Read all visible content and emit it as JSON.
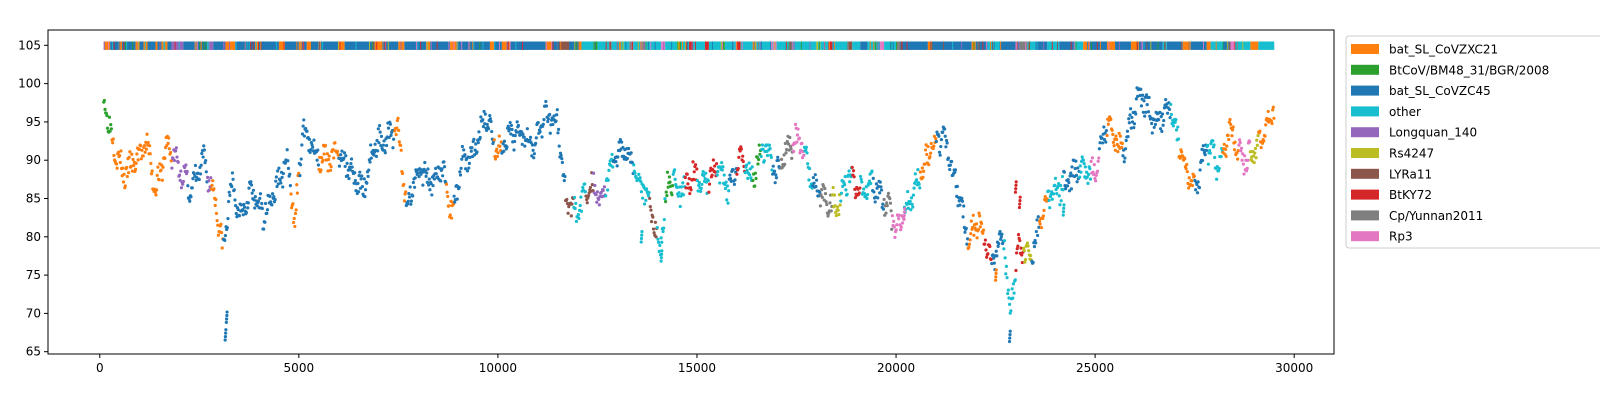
{
  "chart_data": {
    "type": "scatter",
    "title": "",
    "xlabel": "",
    "ylabel": "",
    "xlim": [
      -1300,
      31000
    ],
    "ylim": [
      64.7,
      107
    ],
    "x_ticks": [
      0,
      5000,
      10000,
      15000,
      20000,
      25000,
      30000
    ],
    "x_tick_labels": [
      "0",
      "5000",
      "10000",
      "15000",
      "20000",
      "25000",
      "30000"
    ],
    "y_ticks": [
      65,
      70,
      75,
      80,
      85,
      90,
      95,
      100,
      105
    ],
    "y_tick_labels": [
      "65",
      "70",
      "75",
      "80",
      "85",
      "90",
      "95",
      "100",
      "105"
    ],
    "grid": false,
    "legend_position": "outside-right-top",
    "series": [
      {
        "name": "bat_SL_CoVZXC21",
        "color": "#ff7f0e"
      },
      {
        "name": "BtCoV/BM48_31/BGR/2008",
        "color": "#2ca02c"
      },
      {
        "name": "bat_SL_CoVZC45",
        "color": "#1f77b4"
      },
      {
        "name": "other",
        "color": "#17becf"
      },
      {
        "name": "Longquan_140",
        "color": "#9467bd"
      },
      {
        "name": "Rs4247",
        "color": "#bcbd22"
      },
      {
        "name": "LYRa11",
        "color": "#8c564b"
      },
      {
        "name": "BtKY72",
        "color": "#d62728"
      },
      {
        "name": "Cp/Yunnan2011",
        "color": "#7f7f7f"
      },
      {
        "name": "Rp3",
        "color": "#e377c2"
      }
    ],
    "anchors": [
      [
        100,
        98.5
      ],
      [
        300,
        93
      ],
      [
        600,
        88
      ],
      [
        900,
        90
      ],
      [
        1200,
        92
      ],
      [
        1400,
        86
      ],
      [
        1700,
        92
      ],
      [
        2000,
        89
      ],
      [
        2300,
        86
      ],
      [
        2600,
        90
      ],
      [
        2900,
        85
      ],
      [
        3100,
        78
      ],
      [
        3300,
        87
      ],
      [
        3500,
        83
      ],
      [
        3800,
        86
      ],
      [
        4100,
        83
      ],
      [
        4400,
        86
      ],
      [
        4700,
        90
      ],
      [
        4900,
        82
      ],
      [
        5100,
        94
      ],
      [
        5400,
        91
      ],
      [
        5700,
        90
      ],
      [
        6000,
        91
      ],
      [
        6300,
        89
      ],
      [
        6600,
        86
      ],
      [
        6900,
        92
      ],
      [
        7200,
        93
      ],
      [
        7500,
        94
      ],
      [
        7700,
        84
      ],
      [
        8000,
        89
      ],
      [
        8300,
        87
      ],
      [
        8600,
        89
      ],
      [
        8850,
        83
      ],
      [
        9100,
        90
      ],
      [
        9400,
        91
      ],
      [
        9700,
        96
      ],
      [
        10000,
        91
      ],
      [
        10300,
        93
      ],
      [
        10600,
        94
      ],
      [
        10900,
        92
      ],
      [
        11200,
        96
      ],
      [
        11500,
        95
      ],
      [
        11700,
        85
      ],
      [
        12000,
        83
      ],
      [
        12300,
        87
      ],
      [
        12600,
        85
      ],
      [
        12900,
        90
      ],
      [
        13200,
        92
      ],
      [
        13500,
        88
      ],
      [
        13800,
        85
      ],
      [
        14050,
        78
      ],
      [
        14300,
        88
      ],
      [
        14600,
        86
      ],
      [
        14900,
        88
      ],
      [
        15200,
        87
      ],
      [
        15500,
        89
      ],
      [
        15800,
        86
      ],
      [
        16100,
        90
      ],
      [
        16400,
        88
      ],
      [
        16700,
        92
      ],
      [
        17000,
        88
      ],
      [
        17300,
        92
      ],
      [
        17600,
        93
      ],
      [
        17900,
        87
      ],
      [
        18200,
        85
      ],
      [
        18500,
        84
      ],
      [
        18800,
        88
      ],
      [
        19100,
        86
      ],
      [
        19400,
        87
      ],
      [
        19700,
        85
      ],
      [
        20000,
        81
      ],
      [
        20300,
        84
      ],
      [
        20600,
        88
      ],
      [
        20900,
        92
      ],
      [
        21200,
        93
      ],
      [
        21500,
        87
      ],
      [
        21800,
        80
      ],
      [
        22100,
        82
      ],
      [
        22400,
        76
      ],
      [
        22700,
        81
      ],
      [
        22850,
        70
      ],
      [
        23100,
        79
      ],
      [
        23400,
        77
      ],
      [
        23700,
        84
      ],
      [
        24000,
        86
      ],
      [
        24300,
        87
      ],
      [
        24600,
        89
      ],
      [
        25000,
        88
      ],
      [
        25300,
        95
      ],
      [
        25700,
        91
      ],
      [
        26100,
        99
      ],
      [
        26500,
        95
      ],
      [
        26900,
        97
      ],
      [
        27200,
        90
      ],
      [
        27500,
        86
      ],
      [
        27800,
        92
      ],
      [
        28100,
        89
      ],
      [
        28400,
        94
      ],
      [
        28700,
        90
      ],
      [
        29000,
        91
      ],
      [
        29300,
        94
      ],
      [
        29500,
        97
      ]
    ],
    "segments": [
      [
        0,
        300,
        1
      ],
      [
        300,
        1500,
        0
      ],
      [
        1500,
        1800,
        0
      ],
      [
        1800,
        2200,
        4
      ],
      [
        2200,
        2700,
        2
      ],
      [
        2700,
        2800,
        4
      ],
      [
        2800,
        3100,
        0
      ],
      [
        3100,
        4800,
        2
      ],
      [
        4800,
        5000,
        0
      ],
      [
        5000,
        5500,
        2
      ],
      [
        5500,
        6000,
        0
      ],
      [
        6000,
        7400,
        2
      ],
      [
        7400,
        7700,
        0
      ],
      [
        7700,
        8700,
        2
      ],
      [
        8700,
        8900,
        0
      ],
      [
        8900,
        9900,
        2
      ],
      [
        9900,
        10100,
        0
      ],
      [
        10100,
        11700,
        2
      ],
      [
        11700,
        11900,
        6
      ],
      [
        11900,
        12200,
        3
      ],
      [
        12200,
        12400,
        6
      ],
      [
        12400,
        12700,
        4
      ],
      [
        12700,
        12900,
        3
      ],
      [
        12900,
        13400,
        2
      ],
      [
        13400,
        13800,
        3
      ],
      [
        13800,
        14000,
        6
      ],
      [
        14000,
        14200,
        3
      ],
      [
        14200,
        14400,
        1
      ],
      [
        14400,
        14700,
        3
      ],
      [
        14700,
        15000,
        7
      ],
      [
        15000,
        15300,
        3
      ],
      [
        15300,
        15500,
        7
      ],
      [
        15500,
        15800,
        3
      ],
      [
        15800,
        16000,
        2
      ],
      [
        16000,
        16200,
        7
      ],
      [
        16200,
        16400,
        3
      ],
      [
        16400,
        16600,
        1
      ],
      [
        16600,
        16900,
        3
      ],
      [
        16900,
        17100,
        2
      ],
      [
        17100,
        17400,
        8
      ],
      [
        17400,
        17700,
        9
      ],
      [
        17700,
        17900,
        3
      ],
      [
        17900,
        18100,
        2
      ],
      [
        18100,
        18400,
        8
      ],
      [
        18400,
        18600,
        5
      ],
      [
        18600,
        18900,
        3
      ],
      [
        18900,
        19100,
        7
      ],
      [
        19100,
        19400,
        3
      ],
      [
        19400,
        19700,
        2
      ],
      [
        19700,
        19900,
        8
      ],
      [
        19900,
        20200,
        9
      ],
      [
        20200,
        20600,
        3
      ],
      [
        20600,
        21000,
        0
      ],
      [
        21000,
        21800,
        2
      ],
      [
        21800,
        22200,
        0
      ],
      [
        22200,
        22400,
        7
      ],
      [
        22400,
        22700,
        2
      ],
      [
        22700,
        23000,
        3
      ],
      [
        23000,
        23200,
        7
      ],
      [
        23200,
        23400,
        5
      ],
      [
        23400,
        23600,
        2
      ],
      [
        23600,
        23800,
        0
      ],
      [
        23800,
        24200,
        3
      ],
      [
        24200,
        24600,
        2
      ],
      [
        24600,
        24900,
        3
      ],
      [
        24900,
        25100,
        9
      ],
      [
        25100,
        25300,
        2
      ],
      [
        25300,
        25700,
        0
      ],
      [
        25700,
        26900,
        2
      ],
      [
        26900,
        27100,
        3
      ],
      [
        27100,
        27500,
        0
      ],
      [
        27500,
        27800,
        2
      ],
      [
        27800,
        28200,
        3
      ],
      [
        28200,
        28600,
        0
      ],
      [
        28600,
        28900,
        9
      ],
      [
        28900,
        29100,
        5
      ],
      [
        29100,
        29500,
        0
      ]
    ],
    "outliers": [
      [
        3150,
        67.2,
        2
      ],
      [
        3180,
        69.5,
        2
      ],
      [
        22850,
        67.0,
        2
      ],
      [
        23000,
        86.5,
        7
      ],
      [
        23100,
        84.5,
        7
      ],
      [
        24200,
        83.5,
        3
      ],
      [
        13600,
        80.0,
        3
      ],
      [
        14100,
        77.5,
        3
      ],
      [
        20200,
        83.0,
        9
      ],
      [
        22500,
        75.0,
        0
      ]
    ],
    "band": {
      "y_low": 104.4,
      "y_high": 105.5,
      "pattern": [
        [
          100,
          0
        ],
        [
          260,
          2
        ],
        [
          480,
          0
        ],
        [
          560,
          2
        ],
        [
          900,
          0
        ],
        [
          1000,
          2
        ],
        [
          1100,
          0
        ],
        [
          1200,
          2
        ],
        [
          1400,
          0
        ],
        [
          1450,
          2
        ],
        [
          1550,
          0
        ],
        [
          1700,
          2
        ],
        [
          1800,
          4
        ],
        [
          2100,
          2
        ],
        [
          2400,
          0
        ],
        [
          2450,
          2
        ],
        [
          2700,
          4
        ],
        [
          2850,
          2
        ],
        [
          3150,
          0
        ],
        [
          3400,
          2
        ],
        [
          3900,
          0
        ],
        [
          4000,
          2
        ],
        [
          4500,
          0
        ],
        [
          4650,
          2
        ],
        [
          5000,
          0
        ],
        [
          5050,
          2
        ],
        [
          5200,
          0
        ],
        [
          5300,
          2
        ],
        [
          5500,
          0
        ],
        [
          5550,
          2
        ],
        [
          6000,
          0
        ],
        [
          6150,
          2
        ],
        [
          6900,
          0
        ],
        [
          7100,
          2
        ],
        [
          7500,
          0
        ],
        [
          7650,
          2
        ],
        [
          8200,
          0
        ],
        [
          8300,
          2
        ],
        [
          8800,
          0
        ],
        [
          9000,
          2
        ],
        [
          9800,
          0
        ],
        [
          9900,
          2
        ],
        [
          10100,
          0
        ],
        [
          10300,
          2
        ],
        [
          11200,
          0
        ],
        [
          11350,
          2
        ],
        [
          11500,
          6
        ],
        [
          11800,
          2
        ],
        [
          12000,
          0
        ],
        [
          12100,
          3
        ],
        [
          12400,
          1
        ],
        [
          12500,
          3
        ],
        [
          12800,
          7
        ],
        [
          12850,
          3
        ],
        [
          13300,
          8
        ],
        [
          13400,
          3
        ],
        [
          13600,
          4
        ],
        [
          13700,
          3
        ],
        [
          14100,
          9
        ],
        [
          14200,
          3
        ],
        [
          14500,
          1
        ],
        [
          14600,
          3
        ],
        [
          14800,
          7
        ],
        [
          14900,
          3
        ],
        [
          15200,
          7
        ],
        [
          15300,
          3
        ],
        [
          15600,
          1
        ],
        [
          15700,
          3
        ],
        [
          16000,
          7
        ],
        [
          16100,
          3
        ],
        [
          16400,
          8
        ],
        [
          16500,
          3
        ],
        [
          16900,
          9
        ],
        [
          17000,
          3
        ],
        [
          17300,
          1
        ],
        [
          17400,
          3
        ],
        [
          18000,
          5
        ],
        [
          18100,
          3
        ],
        [
          18300,
          7
        ],
        [
          18400,
          3
        ],
        [
          18800,
          6
        ],
        [
          18900,
          3
        ],
        [
          19100,
          2
        ],
        [
          19300,
          3
        ],
        [
          19600,
          9
        ],
        [
          19700,
          3
        ],
        [
          20000,
          8
        ],
        [
          20100,
          2
        ],
        [
          20800,
          0
        ],
        [
          20900,
          2
        ],
        [
          21900,
          0
        ],
        [
          22000,
          2
        ],
        [
          22300,
          3
        ],
        [
          22600,
          2
        ],
        [
          23000,
          9
        ],
        [
          23100,
          8
        ],
        [
          23300,
          3
        ],
        [
          23500,
          2
        ],
        [
          23800,
          3
        ],
        [
          24100,
          2
        ],
        [
          24500,
          3
        ],
        [
          24700,
          0
        ],
        [
          24800,
          2
        ],
        [
          25300,
          0
        ],
        [
          25500,
          2
        ],
        [
          25900,
          0
        ],
        [
          26100,
          2
        ],
        [
          26700,
          3
        ],
        [
          26800,
          2
        ],
        [
          27200,
          0
        ],
        [
          27400,
          2
        ],
        [
          27800,
          0
        ],
        [
          27900,
          3
        ],
        [
          28200,
          2
        ],
        [
          28400,
          9
        ],
        [
          28500,
          3
        ],
        [
          28900,
          0
        ],
        [
          29100,
          3
        ],
        [
          29500,
          3
        ]
      ]
    }
  }
}
